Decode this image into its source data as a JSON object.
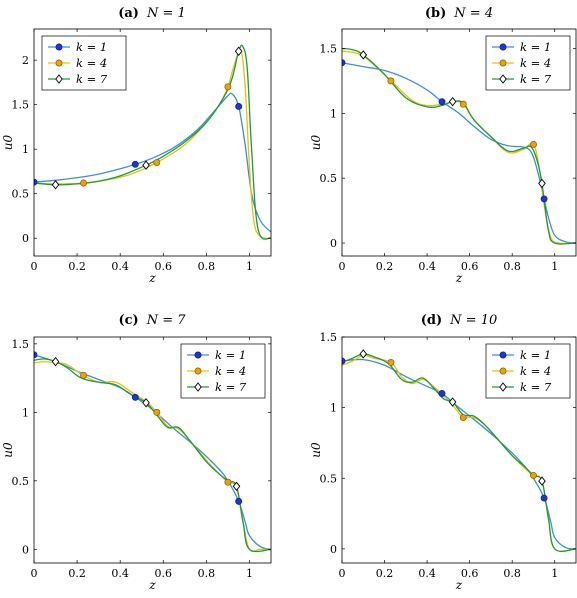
{
  "colors": {
    "k1": "#3c8fd6",
    "k4": "#e6c20a",
    "k7": "#1f9a3a",
    "k1_marker": "#1a35d8",
    "k4_marker": "#f0a000",
    "k7_marker": "#ffffff"
  },
  "chart_data": [
    {
      "type": "line",
      "panel_label": "(a)",
      "title": "N = 1",
      "xlabel": "z",
      "ylabel": "u0",
      "xlim": [
        0,
        1.1
      ],
      "ylim": [
        -0.2,
        2.35
      ],
      "xticks": [
        "0",
        "0.2",
        "0.4",
        "0.6",
        "0.8",
        "1"
      ],
      "yticks": [
        "0",
        "0.5",
        "1",
        "1.5",
        "2"
      ],
      "legend_position": "top-left",
      "series": [
        {
          "name": "k = 1",
          "marker": "circle",
          "x": [
            0,
            0.1,
            0.2,
            0.3,
            0.4,
            0.47,
            0.55,
            0.65,
            0.75,
            0.82,
            0.87,
            0.9,
            0.92,
            0.95,
            0.98,
            1.01,
            1.05,
            1.1
          ],
          "y": [
            0.63,
            0.65,
            0.68,
            0.72,
            0.78,
            0.83,
            0.9,
            1.02,
            1.2,
            1.38,
            1.52,
            1.6,
            1.62,
            1.48,
            1.05,
            0.5,
            0.2,
            0.07
          ],
          "markers_x": [
            0,
            0.47,
            0.95
          ],
          "markers_y": [
            0.63,
            0.83,
            1.48
          ]
        },
        {
          "name": "k = 4",
          "marker": "circle",
          "x": [
            0,
            0.1,
            0.23,
            0.35,
            0.45,
            0.57,
            0.7,
            0.8,
            0.86,
            0.9,
            0.93,
            0.96,
            0.98,
            1.0,
            1.02,
            1.05,
            1.1
          ],
          "y": [
            0.62,
            0.61,
            0.62,
            0.66,
            0.72,
            0.85,
            1.05,
            1.3,
            1.5,
            1.7,
            1.95,
            2.1,
            1.7,
            0.8,
            0.2,
            0.02,
            0.0
          ],
          "markers_x": [
            0.23,
            0.57,
            0.9
          ],
          "markers_y": [
            0.62,
            0.85,
            1.7
          ]
        },
        {
          "name": "k = 7",
          "marker": "diamond",
          "x": [
            0,
            0.1,
            0.2,
            0.3,
            0.4,
            0.52,
            0.6,
            0.7,
            0.8,
            0.88,
            0.92,
            0.95,
            0.97,
            0.99,
            1.01,
            1.04,
            1.1
          ],
          "y": [
            0.62,
            0.6,
            0.61,
            0.64,
            0.7,
            0.82,
            0.92,
            1.08,
            1.3,
            1.58,
            1.8,
            2.1,
            2.15,
            1.9,
            1.0,
            0.1,
            0.0
          ],
          "markers_x": [
            0.1,
            0.52,
            0.95
          ],
          "markers_y": [
            0.6,
            0.82,
            2.1
          ]
        }
      ]
    },
    {
      "type": "line",
      "panel_label": "(b)",
      "title": "N = 4",
      "xlabel": "z",
      "ylabel": "u0",
      "xlim": [
        0,
        1.1
      ],
      "ylim": [
        -0.1,
        1.65
      ],
      "xticks": [
        "0",
        "0.2",
        "0.4",
        "0.6",
        "0.8",
        "1"
      ],
      "yticks": [
        "0",
        "0.5",
        "1",
        "1.5"
      ],
      "legend_position": "top-right",
      "series": [
        {
          "name": "k = 1",
          "marker": "circle",
          "x": [
            0,
            0.1,
            0.2,
            0.3,
            0.4,
            0.47,
            0.55,
            0.62,
            0.7,
            0.78,
            0.85,
            0.89,
            0.92,
            0.95,
            0.97,
            1.0,
            1.05,
            1.1
          ],
          "y": [
            1.39,
            1.36,
            1.33,
            1.27,
            1.18,
            1.09,
            1.0,
            0.9,
            0.8,
            0.75,
            0.74,
            0.7,
            0.55,
            0.34,
            0.2,
            0.06,
            0.01,
            0.0
          ],
          "markers_x": [
            0,
            0.47,
            0.95
          ],
          "markers_y": [
            1.39,
            1.09,
            0.34
          ]
        },
        {
          "name": "k = 4",
          "marker": "circle",
          "x": [
            0,
            0.1,
            0.23,
            0.33,
            0.4,
            0.47,
            0.53,
            0.57,
            0.62,
            0.7,
            0.78,
            0.85,
            0.9,
            0.93,
            0.95,
            0.98,
            1.02,
            1.1
          ],
          "y": [
            1.48,
            1.44,
            1.25,
            1.1,
            1.06,
            1.07,
            1.09,
            1.07,
            0.95,
            0.82,
            0.7,
            0.72,
            0.76,
            0.55,
            0.3,
            0.05,
            0.0,
            0.0
          ],
          "markers_x": [
            0.23,
            0.57,
            0.9
          ],
          "markers_y": [
            1.25,
            1.07,
            0.76
          ]
        },
        {
          "name": "k = 7",
          "marker": "diamond",
          "x": [
            0,
            0.05,
            0.1,
            0.2,
            0.3,
            0.4,
            0.47,
            0.52,
            0.57,
            0.62,
            0.7,
            0.78,
            0.85,
            0.89,
            0.92,
            0.94,
            0.97,
            1.0,
            1.1
          ],
          "y": [
            1.5,
            1.49,
            1.45,
            1.3,
            1.12,
            1.05,
            1.06,
            1.09,
            1.08,
            0.95,
            0.82,
            0.71,
            0.73,
            0.74,
            0.62,
            0.46,
            0.1,
            0.0,
            0.0
          ],
          "markers_x": [
            0.1,
            0.52,
            0.94
          ],
          "markers_y": [
            1.45,
            1.09,
            0.46
          ]
        }
      ]
    },
    {
      "type": "line",
      "panel_label": "(c)",
      "title": "N = 7",
      "xlabel": "z",
      "ylabel": "u0",
      "xlim": [
        0,
        1.1
      ],
      "ylim": [
        -0.1,
        1.55
      ],
      "xticks": [
        "0",
        "0.2",
        "0.4",
        "0.6",
        "0.8",
        "1"
      ],
      "yticks": [
        "0",
        "0.5",
        "1",
        "1.5"
      ],
      "legend_position": "top-right",
      "series": [
        {
          "name": "k = 1",
          "marker": "circle",
          "x": [
            0,
            0.1,
            0.2,
            0.3,
            0.4,
            0.47,
            0.55,
            0.65,
            0.75,
            0.85,
            0.9,
            0.95,
            0.98,
            1.0,
            1.05,
            1.1
          ],
          "y": [
            1.42,
            1.37,
            1.3,
            1.24,
            1.18,
            1.11,
            1.02,
            0.88,
            0.75,
            0.6,
            0.5,
            0.35,
            0.2,
            0.1,
            0.02,
            0.0
          ],
          "markers_x": [
            0,
            0.47,
            0.95
          ],
          "markers_y": [
            1.42,
            1.11,
            0.35
          ]
        },
        {
          "name": "k = 4",
          "marker": "circle",
          "x": [
            0,
            0.05,
            0.1,
            0.15,
            0.23,
            0.3,
            0.38,
            0.45,
            0.52,
            0.57,
            0.62,
            0.67,
            0.72,
            0.8,
            0.86,
            0.9,
            0.94,
            0.97,
            1.0,
            1.05,
            1.1
          ],
          "y": [
            1.36,
            1.37,
            1.36,
            1.35,
            1.27,
            1.22,
            1.22,
            1.15,
            1.08,
            1.0,
            0.9,
            0.88,
            0.8,
            0.65,
            0.55,
            0.49,
            0.45,
            0.2,
            0.0,
            0.0,
            0.0
          ],
          "markers_x": [
            0.23,
            0.57,
            0.9
          ],
          "markers_y": [
            1.27,
            1.0,
            0.49
          ]
        },
        {
          "name": "k = 7",
          "marker": "diamond",
          "x": [
            0,
            0.05,
            0.1,
            0.15,
            0.22,
            0.3,
            0.38,
            0.45,
            0.52,
            0.57,
            0.62,
            0.67,
            0.72,
            0.8,
            0.86,
            0.9,
            0.94,
            0.97,
            1.0,
            1.1
          ],
          "y": [
            1.38,
            1.39,
            1.37,
            1.33,
            1.25,
            1.22,
            1.2,
            1.13,
            1.07,
            0.98,
            0.89,
            0.89,
            0.8,
            0.64,
            0.55,
            0.5,
            0.46,
            0.2,
            0.0,
            0.0
          ],
          "markers_x": [
            0.1,
            0.52,
            0.94
          ],
          "markers_y": [
            1.37,
            1.07,
            0.46
          ]
        }
      ]
    },
    {
      "type": "line",
      "panel_label": "(d)",
      "title": "N = 10",
      "xlabel": "z",
      "ylabel": "u0",
      "xlim": [
        0,
        1.1
      ],
      "ylim": [
        -0.1,
        1.5
      ],
      "xticks": [
        "0",
        "0.2",
        "0.4",
        "0.6",
        "0.8",
        "1"
      ],
      "yticks": [
        "0",
        "0.5",
        "1",
        "1.5"
      ],
      "legend_position": "top-right",
      "series": [
        {
          "name": "k = 1",
          "marker": "circle",
          "x": [
            0,
            0.1,
            0.2,
            0.3,
            0.4,
            0.47,
            0.55,
            0.65,
            0.75,
            0.85,
            0.9,
            0.95,
            0.98,
            1.0,
            1.05,
            1.1
          ],
          "y": [
            1.33,
            1.34,
            1.3,
            1.22,
            1.15,
            1.1,
            1.0,
            0.88,
            0.75,
            0.6,
            0.5,
            0.36,
            0.2,
            0.08,
            0.01,
            0.0
          ],
          "markers_x": [
            0,
            0.47,
            0.95
          ],
          "markers_y": [
            1.33,
            1.1,
            0.36
          ]
        },
        {
          "name": "k = 4",
          "marker": "circle",
          "x": [
            0,
            0.05,
            0.1,
            0.15,
            0.23,
            0.28,
            0.33,
            0.38,
            0.43,
            0.48,
            0.53,
            0.57,
            0.62,
            0.67,
            0.73,
            0.8,
            0.86,
            0.9,
            0.94,
            0.97,
            1.0,
            1.1
          ],
          "y": [
            1.3,
            1.33,
            1.37,
            1.35,
            1.32,
            1.22,
            1.17,
            1.2,
            1.15,
            1.08,
            1.0,
            0.93,
            0.93,
            0.88,
            0.78,
            0.66,
            0.57,
            0.52,
            0.48,
            0.22,
            0.0,
            0.0
          ],
          "markers_x": [
            0.23,
            0.57,
            0.9
          ],
          "markers_y": [
            1.32,
            0.93,
            0.52
          ]
        },
        {
          "name": "k = 7",
          "marker": "diamond",
          "x": [
            0,
            0.05,
            0.1,
            0.15,
            0.22,
            0.28,
            0.33,
            0.38,
            0.43,
            0.48,
            0.52,
            0.57,
            0.62,
            0.67,
            0.73,
            0.8,
            0.86,
            0.9,
            0.94,
            0.97,
            1.0,
            1.1
          ],
          "y": [
            1.32,
            1.35,
            1.38,
            1.36,
            1.31,
            1.2,
            1.18,
            1.21,
            1.14,
            1.06,
            1.04,
            0.95,
            0.94,
            0.88,
            0.78,
            0.66,
            0.58,
            0.52,
            0.48,
            0.22,
            0.0,
            0.0
          ],
          "markers_x": [
            0.1,
            0.52,
            0.94
          ],
          "markers_y": [
            1.38,
            1.04,
            0.48
          ]
        }
      ]
    }
  ]
}
